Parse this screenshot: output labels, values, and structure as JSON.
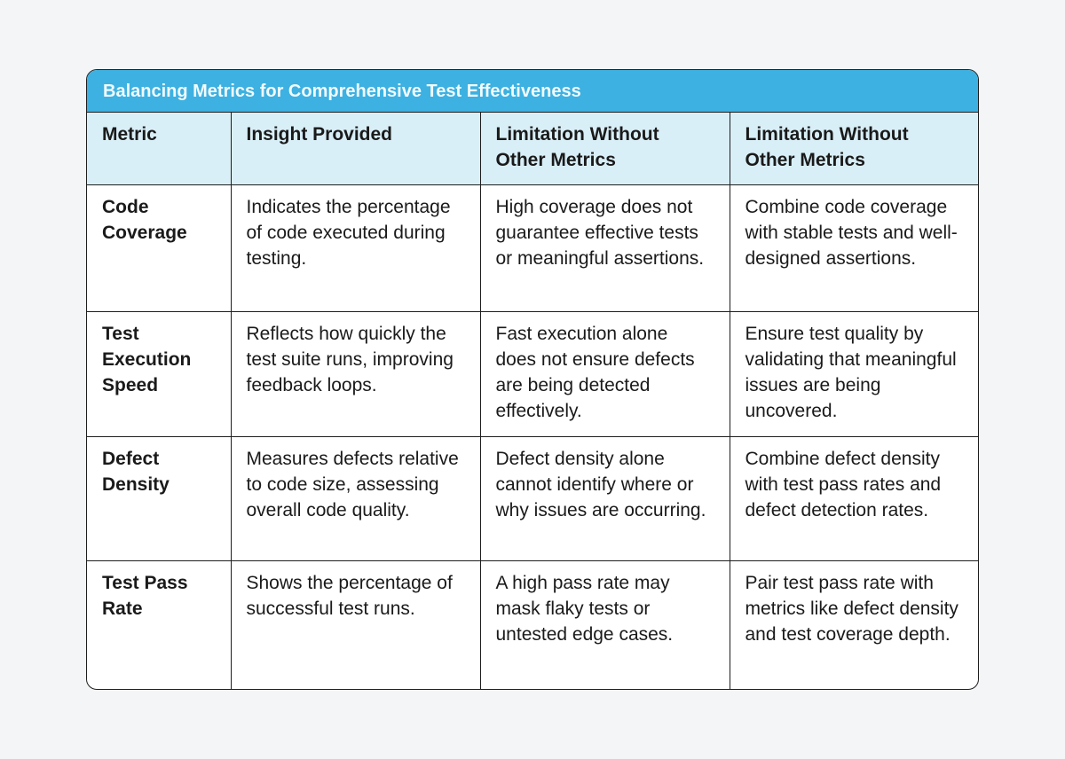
{
  "title": "Balancing Metrics for Comprehensive Test Effectiveness",
  "headers": [
    "Metric",
    "Insight Provided",
    "Limitation Without Other Metrics",
    "Limitation Without Other Metrics"
  ],
  "rows": [
    [
      "Code Coverage",
      "Indicates the percentage of code executed during testing.",
      "High coverage does not guarantee effective tests or meaningful assertions.",
      "Combine code coverage with stable tests and well-designed assertions."
    ],
    [
      "Test Execution Speed",
      "Reflects how quickly the test suite runs, improving feedback loops.",
      "Fast execution alone does not ensure defects are being detected effectively.",
      "Ensure test quality by validating that meaningful issues are being uncovered."
    ],
    [
      "Defect Density",
      "Measures defects relative to code size, assessing overall code quality.",
      "Defect density alone cannot identify where or why issues are occurring.",
      "Combine defect density with test pass rates and defect detection rates."
    ],
    [
      "Test Pass Rate",
      "Shows the percentage of successful test runs.",
      "A high pass rate may mask flaky tests or untested edge cases.",
      "Pair test pass rate with metrics like defect density and test coverage depth."
    ]
  ],
  "colors": {
    "title_bg": "#3db1e1",
    "header_bg": "#d9eff7",
    "border": "#1e1e1e"
  }
}
